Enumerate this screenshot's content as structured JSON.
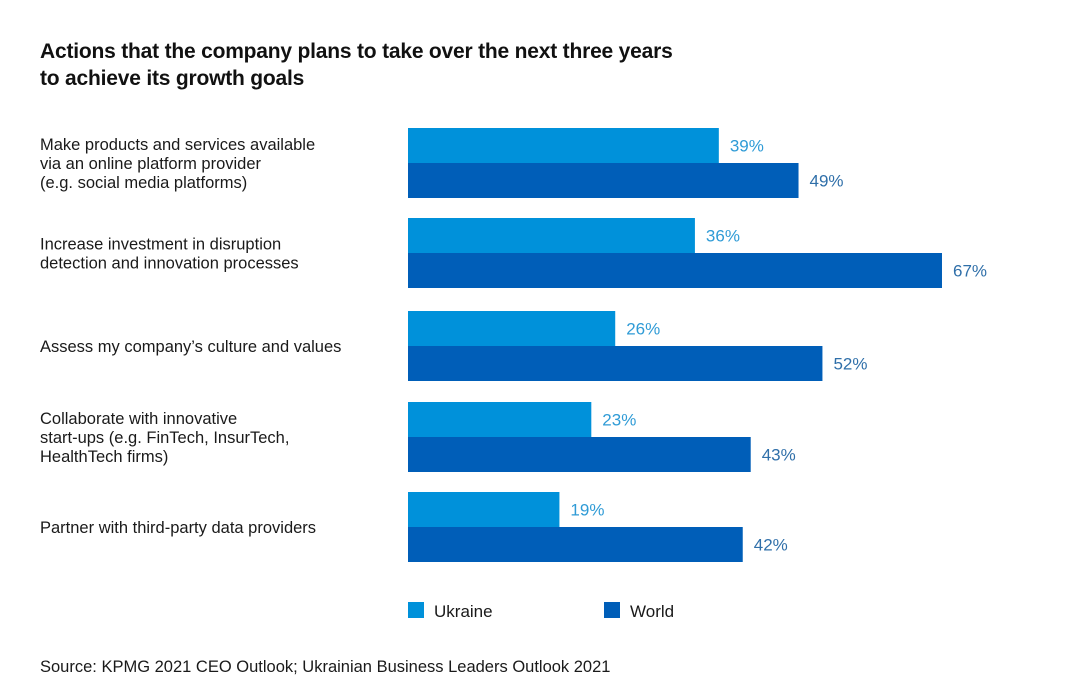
{
  "chart_data": {
    "type": "bar",
    "orientation": "horizontal",
    "title": "Actions that the company plans to take over the next three years\nto achieve its growth goals",
    "categories": [
      [
        "Make products and services available",
        "via an online platform provider",
        "(e.g. social media platforms)"
      ],
      [
        "Increase investment in disruption",
        "detection and innovation processes"
      ],
      [
        "Assess my company’s culture and values"
      ],
      [
        "Collaborate with innovative",
        "start-ups (e.g. FinTech, InsurTech,",
        "HealthTech firms)"
      ],
      [
        "Partner with third-party data providers"
      ]
    ],
    "series": [
      {
        "name": "Ukraine",
        "color": "#0091DA",
        "label_color": "#2F9BD6",
        "values": [
          39,
          36,
          26,
          23,
          19
        ]
      },
      {
        "name": "World",
        "color": "#005EB8",
        "label_color": "#2F6FA9",
        "values": [
          49,
          67,
          52,
          43,
          42
        ]
      }
    ],
    "value_suffix": "%",
    "xlim": [
      0,
      100
    ],
    "grid": false,
    "legend": "bottom",
    "xlabel": "",
    "ylabel": ""
  },
  "source": "Source: KPMG 2021 CEO Outlook; Ukrainian Business Leaders Outlook 2021"
}
